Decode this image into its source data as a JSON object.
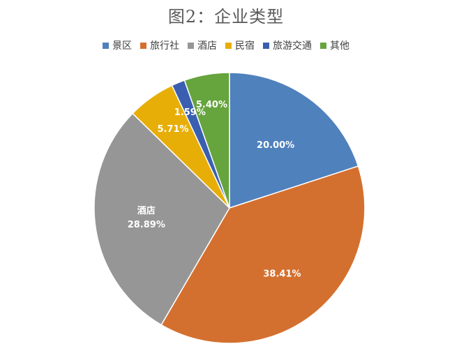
{
  "chart_data": {
    "type": "pie",
    "title": "图2：企业类型",
    "legend_position": "top",
    "slices": [
      {
        "name": "景区",
        "value": 20.0,
        "label": "20.00%",
        "color": "#4F81BD"
      },
      {
        "name": "旅行社",
        "value": 38.41,
        "label": "38.41%",
        "color": "#D4702F"
      },
      {
        "name": "酒店",
        "value": 28.89,
        "label": "28.89%",
        "category_label": "酒店",
        "color": "#969696"
      },
      {
        "name": "民宿",
        "value": 5.71,
        "label": "5.71%",
        "color": "#E8AE08"
      },
      {
        "name": "旅游交通",
        "value": 1.59,
        "label": "1.59%",
        "color": "#3A5FB0"
      },
      {
        "name": "其他",
        "value": 5.4,
        "label": "5.40%",
        "color": "#66A43D"
      }
    ]
  }
}
